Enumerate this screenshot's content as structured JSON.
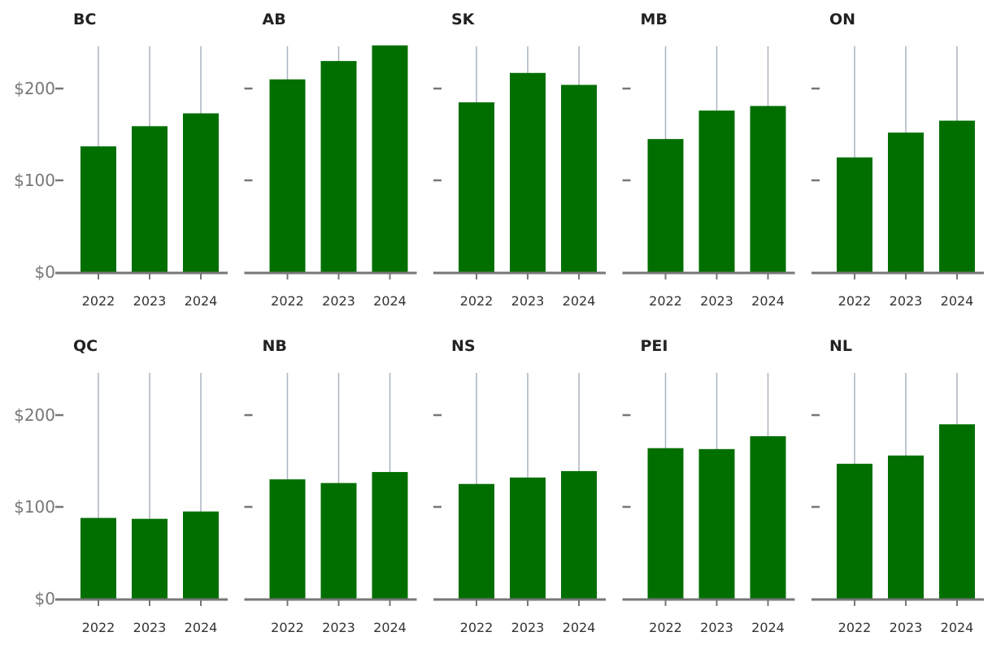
{
  "chart_data": {
    "type": "bar",
    "layout": "small-multiples",
    "rows": 2,
    "cols": 5,
    "categories": [
      "2022",
      "2023",
      "2024"
    ],
    "ylim": [
      0,
      245
    ],
    "yticks": [
      0,
      100,
      200
    ],
    "ytick_labels": [
      "$0",
      "$100",
      "$200"
    ],
    "panels": [
      {
        "title": "BC",
        "values": [
          137,
          159,
          173
        ]
      },
      {
        "title": "AB",
        "values": [
          210,
          230,
          247
        ]
      },
      {
        "title": "SK",
        "values": [
          185,
          217,
          204
        ]
      },
      {
        "title": "MB",
        "values": [
          145,
          176,
          181
        ]
      },
      {
        "title": "ON",
        "values": [
          125,
          152,
          165
        ]
      },
      {
        "title": "QC",
        "values": [
          88,
          87,
          95
        ]
      },
      {
        "title": "NB",
        "values": [
          130,
          126,
          138
        ]
      },
      {
        "title": "NS",
        "values": [
          125,
          132,
          139
        ]
      },
      {
        "title": "PEI",
        "values": [
          164,
          163,
          177
        ]
      },
      {
        "title": "NL",
        "values": [
          147,
          156,
          190
        ]
      }
    ],
    "colors": {
      "bar": "#006f00",
      "grid": "#aab4bf",
      "axis": "#777777"
    }
  }
}
